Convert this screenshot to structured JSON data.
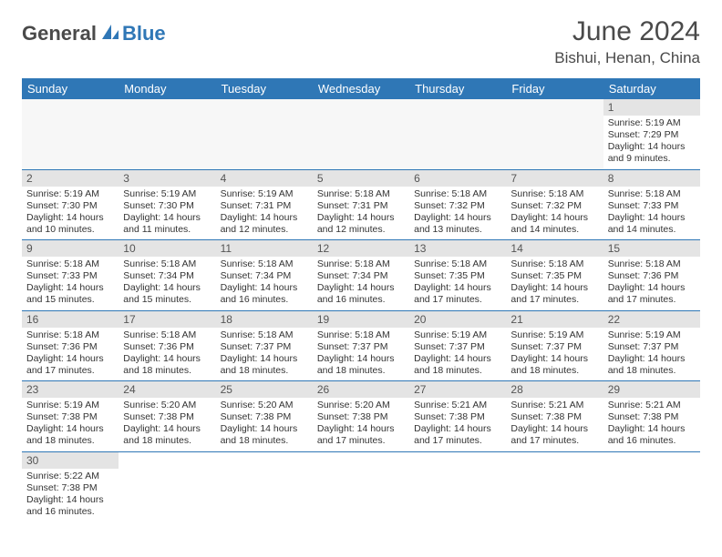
{
  "brand": {
    "part1": "General",
    "part2": "Blue"
  },
  "title": "June 2024",
  "location": "Bishui, Henan, China",
  "colors": {
    "accent": "#2f77b6",
    "header_row_bg": "#2f77b6",
    "header_row_text": "#ffffff",
    "daynum_bg": "#e4e4e4",
    "text": "#333333",
    "logo_gray": "#4a4a4a"
  },
  "weekdays": [
    "Sunday",
    "Monday",
    "Tuesday",
    "Wednesday",
    "Thursday",
    "Friday",
    "Saturday"
  ],
  "grid": [
    [
      null,
      null,
      null,
      null,
      null,
      null,
      {
        "n": "1",
        "sr": "Sunrise: 5:19 AM",
        "ss": "Sunset: 7:29 PM",
        "dl": "Daylight: 14 hours and 9 minutes."
      }
    ],
    [
      {
        "n": "2",
        "sr": "Sunrise: 5:19 AM",
        "ss": "Sunset: 7:30 PM",
        "dl": "Daylight: 14 hours and 10 minutes."
      },
      {
        "n": "3",
        "sr": "Sunrise: 5:19 AM",
        "ss": "Sunset: 7:30 PM",
        "dl": "Daylight: 14 hours and 11 minutes."
      },
      {
        "n": "4",
        "sr": "Sunrise: 5:19 AM",
        "ss": "Sunset: 7:31 PM",
        "dl": "Daylight: 14 hours and 12 minutes."
      },
      {
        "n": "5",
        "sr": "Sunrise: 5:18 AM",
        "ss": "Sunset: 7:31 PM",
        "dl": "Daylight: 14 hours and 12 minutes."
      },
      {
        "n": "6",
        "sr": "Sunrise: 5:18 AM",
        "ss": "Sunset: 7:32 PM",
        "dl": "Daylight: 14 hours and 13 minutes."
      },
      {
        "n": "7",
        "sr": "Sunrise: 5:18 AM",
        "ss": "Sunset: 7:32 PM",
        "dl": "Daylight: 14 hours and 14 minutes."
      },
      {
        "n": "8",
        "sr": "Sunrise: 5:18 AM",
        "ss": "Sunset: 7:33 PM",
        "dl": "Daylight: 14 hours and 14 minutes."
      }
    ],
    [
      {
        "n": "9",
        "sr": "Sunrise: 5:18 AM",
        "ss": "Sunset: 7:33 PM",
        "dl": "Daylight: 14 hours and 15 minutes."
      },
      {
        "n": "10",
        "sr": "Sunrise: 5:18 AM",
        "ss": "Sunset: 7:34 PM",
        "dl": "Daylight: 14 hours and 15 minutes."
      },
      {
        "n": "11",
        "sr": "Sunrise: 5:18 AM",
        "ss": "Sunset: 7:34 PM",
        "dl": "Daylight: 14 hours and 16 minutes."
      },
      {
        "n": "12",
        "sr": "Sunrise: 5:18 AM",
        "ss": "Sunset: 7:34 PM",
        "dl": "Daylight: 14 hours and 16 minutes."
      },
      {
        "n": "13",
        "sr": "Sunrise: 5:18 AM",
        "ss": "Sunset: 7:35 PM",
        "dl": "Daylight: 14 hours and 17 minutes."
      },
      {
        "n": "14",
        "sr": "Sunrise: 5:18 AM",
        "ss": "Sunset: 7:35 PM",
        "dl": "Daylight: 14 hours and 17 minutes."
      },
      {
        "n": "15",
        "sr": "Sunrise: 5:18 AM",
        "ss": "Sunset: 7:36 PM",
        "dl": "Daylight: 14 hours and 17 minutes."
      }
    ],
    [
      {
        "n": "16",
        "sr": "Sunrise: 5:18 AM",
        "ss": "Sunset: 7:36 PM",
        "dl": "Daylight: 14 hours and 17 minutes."
      },
      {
        "n": "17",
        "sr": "Sunrise: 5:18 AM",
        "ss": "Sunset: 7:36 PM",
        "dl": "Daylight: 14 hours and 18 minutes."
      },
      {
        "n": "18",
        "sr": "Sunrise: 5:18 AM",
        "ss": "Sunset: 7:37 PM",
        "dl": "Daylight: 14 hours and 18 minutes."
      },
      {
        "n": "19",
        "sr": "Sunrise: 5:18 AM",
        "ss": "Sunset: 7:37 PM",
        "dl": "Daylight: 14 hours and 18 minutes."
      },
      {
        "n": "20",
        "sr": "Sunrise: 5:19 AM",
        "ss": "Sunset: 7:37 PM",
        "dl": "Daylight: 14 hours and 18 minutes."
      },
      {
        "n": "21",
        "sr": "Sunrise: 5:19 AM",
        "ss": "Sunset: 7:37 PM",
        "dl": "Daylight: 14 hours and 18 minutes."
      },
      {
        "n": "22",
        "sr": "Sunrise: 5:19 AM",
        "ss": "Sunset: 7:37 PM",
        "dl": "Daylight: 14 hours and 18 minutes."
      }
    ],
    [
      {
        "n": "23",
        "sr": "Sunrise: 5:19 AM",
        "ss": "Sunset: 7:38 PM",
        "dl": "Daylight: 14 hours and 18 minutes."
      },
      {
        "n": "24",
        "sr": "Sunrise: 5:20 AM",
        "ss": "Sunset: 7:38 PM",
        "dl": "Daylight: 14 hours and 18 minutes."
      },
      {
        "n": "25",
        "sr": "Sunrise: 5:20 AM",
        "ss": "Sunset: 7:38 PM",
        "dl": "Daylight: 14 hours and 18 minutes."
      },
      {
        "n": "26",
        "sr": "Sunrise: 5:20 AM",
        "ss": "Sunset: 7:38 PM",
        "dl": "Daylight: 14 hours and 17 minutes."
      },
      {
        "n": "27",
        "sr": "Sunrise: 5:21 AM",
        "ss": "Sunset: 7:38 PM",
        "dl": "Daylight: 14 hours and 17 minutes."
      },
      {
        "n": "28",
        "sr": "Sunrise: 5:21 AM",
        "ss": "Sunset: 7:38 PM",
        "dl": "Daylight: 14 hours and 17 minutes."
      },
      {
        "n": "29",
        "sr": "Sunrise: 5:21 AM",
        "ss": "Sunset: 7:38 PM",
        "dl": "Daylight: 14 hours and 16 minutes."
      }
    ],
    [
      {
        "n": "30",
        "sr": "Sunrise: 5:22 AM",
        "ss": "Sunset: 7:38 PM",
        "dl": "Daylight: 14 hours and 16 minutes."
      },
      null,
      null,
      null,
      null,
      null,
      null
    ]
  ]
}
